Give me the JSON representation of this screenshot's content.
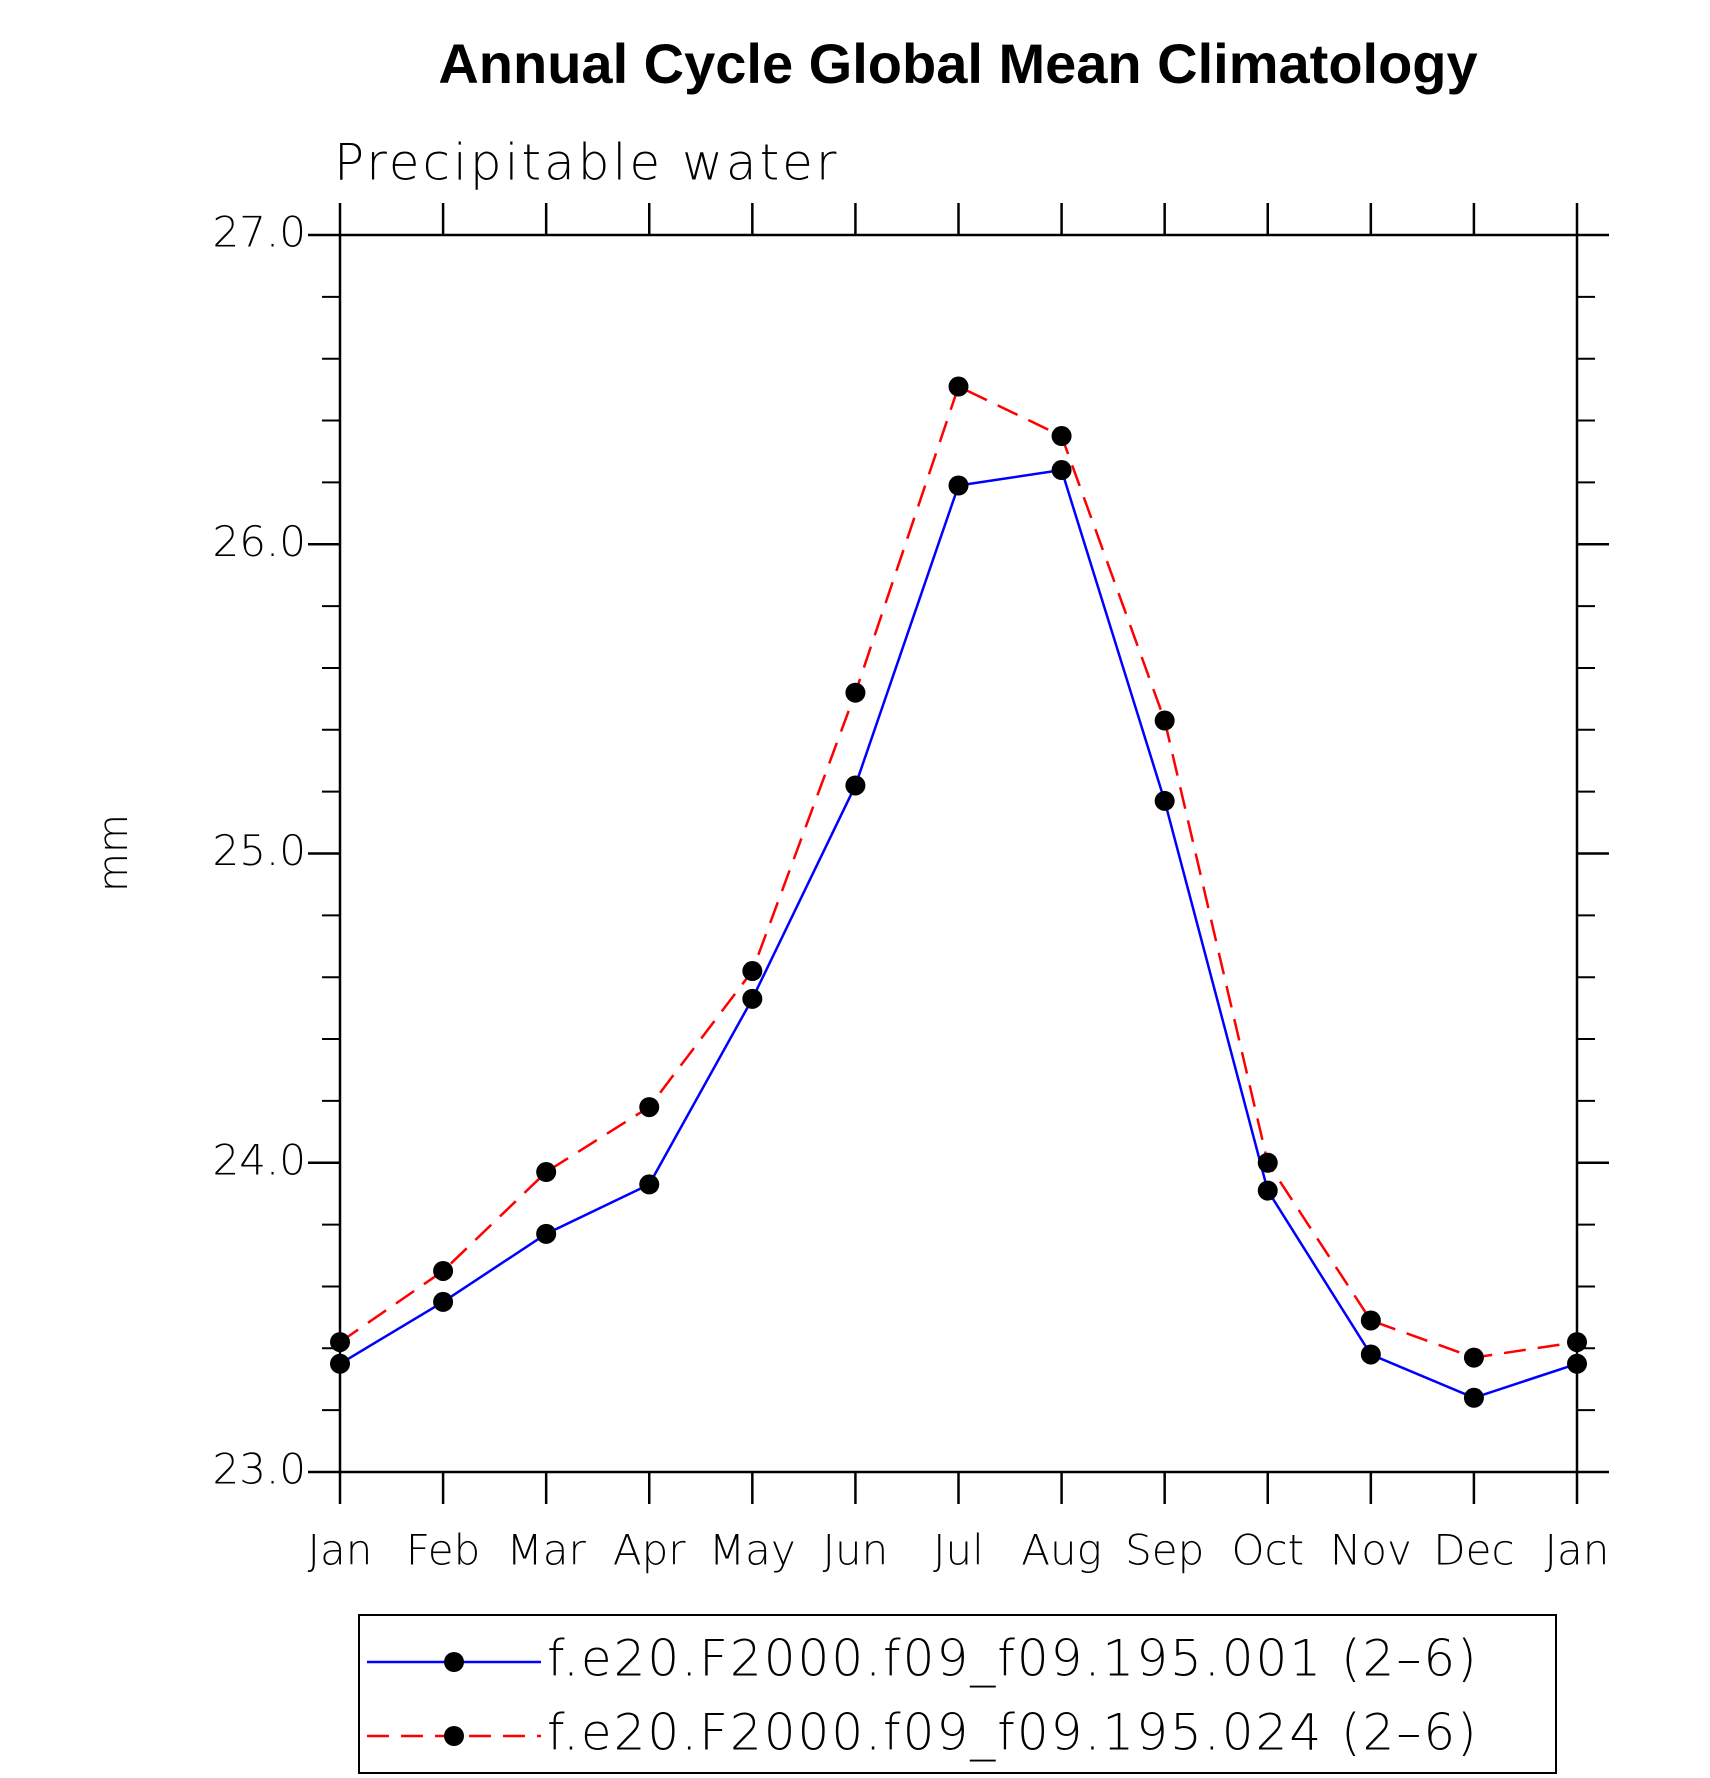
{
  "chart_data": {
    "type": "line",
    "title": "Annual Cycle Global Mean Climatology",
    "subtitle": "Precipitable water",
    "y_label": "mm",
    "categories": [
      "Jan",
      "Feb",
      "Mar",
      "Apr",
      "May",
      "Jun",
      "Jul",
      "Aug",
      "Sep",
      "Oct",
      "Nov",
      "Dec",
      "Jan"
    ],
    "series": [
      {
        "name": "f.e20.F2000.f09_f09.195.001 (2–6)",
        "color": "#0000ff",
        "dash": false,
        "values": [
          23.35,
          23.55,
          23.77,
          23.93,
          24.53,
          25.22,
          26.19,
          26.24,
          25.17,
          23.91,
          23.38,
          23.24,
          23.35
        ]
      },
      {
        "name": "f.e20.F2000.f09_f09.195.024 (2–6)",
        "color": "#ff0000",
        "dash": true,
        "values": [
          23.42,
          23.65,
          23.97,
          24.18,
          24.62,
          25.52,
          26.51,
          26.35,
          25.43,
          24.0,
          23.49,
          23.37,
          23.42
        ]
      }
    ],
    "ylim": [
      23,
      27
    ],
    "yticks": [
      {
        "value": 23,
        "label": "23.0"
      },
      {
        "value": 24,
        "label": "24.0"
      },
      {
        "value": 25,
        "label": "25.0"
      },
      {
        "value": 26,
        "label": "26.0"
      },
      {
        "value": 27,
        "label": "27.0"
      }
    ],
    "legend": "bottom"
  }
}
